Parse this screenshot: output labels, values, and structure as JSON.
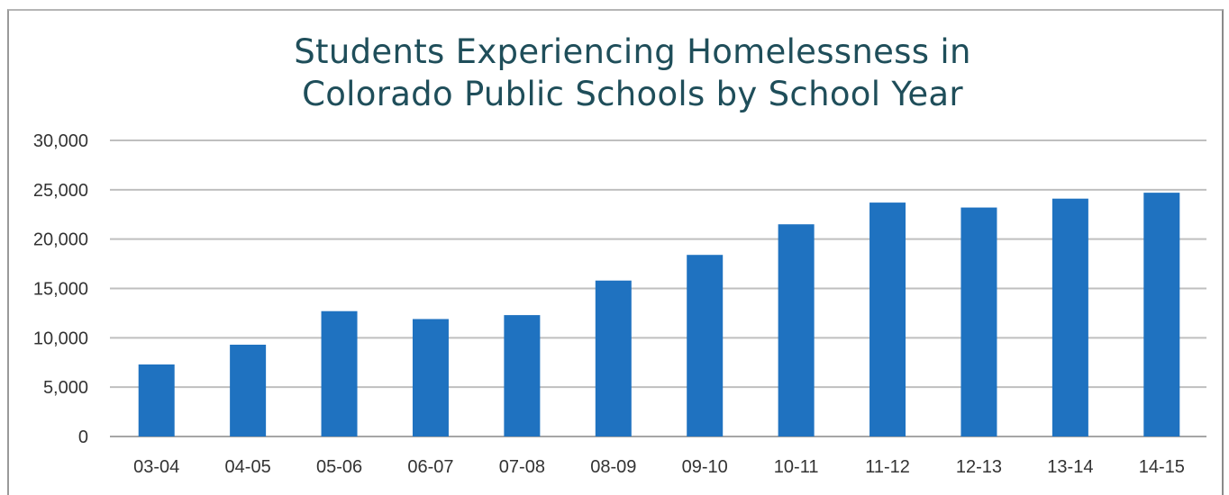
{
  "chart_data": {
    "type": "bar",
    "title": "Students Experiencing Homelessness in Colorado Public Schools by School Year",
    "title_lines": [
      "Students Experiencing Homelessness in",
      "Colorado Public Schools by School Year"
    ],
    "xlabel": "",
    "ylabel": "",
    "categories": [
      "03-04",
      "04-05",
      "05-06",
      "06-07",
      "07-08",
      "08-09",
      "09-10",
      "10-11",
      "11-12",
      "12-13",
      "13-14",
      "14-15"
    ],
    "values": [
      7300,
      9300,
      12700,
      11900,
      12300,
      15800,
      18400,
      21500,
      23700,
      23200,
      24100,
      24700
    ],
    "ylim": [
      0,
      30000
    ],
    "yticks": [
      0,
      5000,
      10000,
      15000,
      20000,
      25000,
      30000
    ],
    "ytick_labels": [
      "0",
      "5,000",
      "10,000",
      "15,000",
      "20,000",
      "25,000",
      "30,000"
    ],
    "grid": true,
    "legend": "none",
    "bar_color": "#1f72c0",
    "title_color": "#1f4e5a",
    "grid_color": "#bfbfbf"
  }
}
